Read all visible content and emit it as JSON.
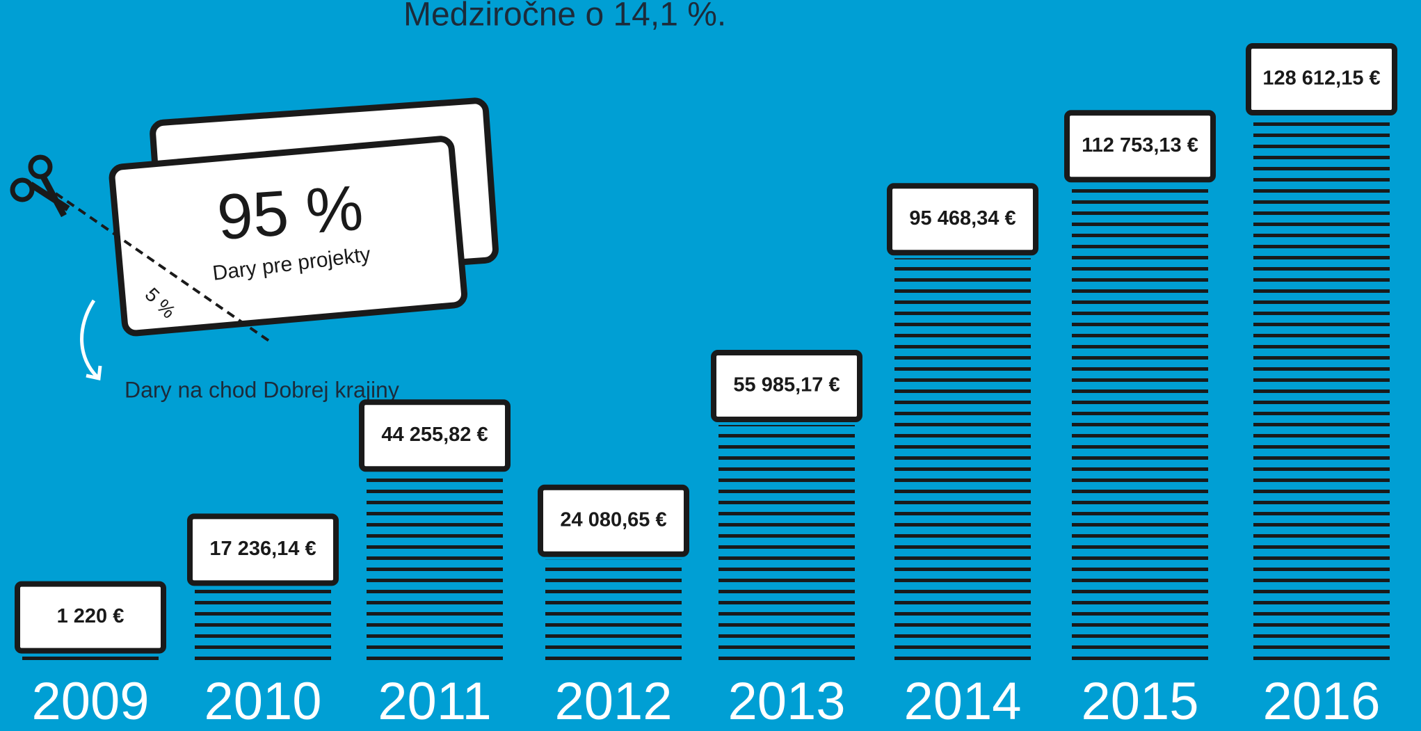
{
  "chart_data": {
    "type": "bar",
    "title": "Medziročne o 14,1 %.",
    "categories": [
      "2009",
      "2010",
      "2011",
      "2012",
      "2013",
      "2014",
      "2015",
      "2016"
    ],
    "values": [
      1220,
      17236.14,
      44255.82,
      24080.65,
      55985.17,
      95468.34,
      112753.13,
      128612.15
    ],
    "value_labels": [
      "1 220 €",
      "17 236,14 €",
      "44 255,82 €",
      "24 080,65 €",
      "55 985,17 €",
      "95 468,34 €",
      "112 753,13 €",
      "128 612,15 €"
    ],
    "color": "#1a1a1a",
    "annotations": [
      {
        "text": "95 %"
      },
      {
        "text": "Dary pre projekty"
      },
      {
        "text": "5 %"
      },
      {
        "text": "Dary na chod Dobrej krajiny"
      }
    ]
  }
}
